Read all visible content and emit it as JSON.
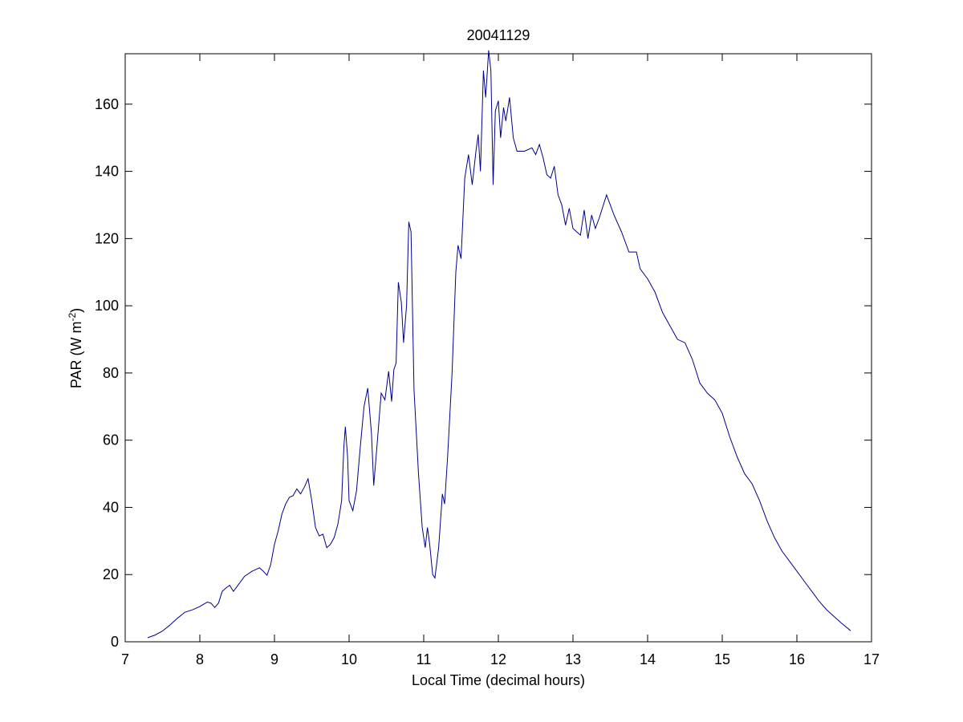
{
  "chart_data": {
    "type": "line",
    "title": "20041129",
    "xlabel": "Local Time (decimal hours)",
    "ylabel": {
      "text": "PAR (W m",
      "superscript": "-2",
      "suffix": ")"
    },
    "color": "#00008b",
    "xlim": [
      7,
      17
    ],
    "xticks": [
      7,
      8,
      9,
      10,
      11,
      12,
      13,
      14,
      15,
      16,
      17
    ],
    "ylim": [
      0,
      175
    ],
    "yticks": [
      0,
      20,
      40,
      60,
      80,
      100,
      120,
      140,
      160
    ],
    "x": [
      7.3,
      7.4,
      7.5,
      7.6,
      7.7,
      7.8,
      7.9,
      8.0,
      8.1,
      8.15,
      8.2,
      8.25,
      8.3,
      8.35,
      8.4,
      8.45,
      8.5,
      8.6,
      8.7,
      8.8,
      8.85,
      8.9,
      8.95,
      9.0,
      9.05,
      9.1,
      9.15,
      9.2,
      9.25,
      9.3,
      9.35,
      9.4,
      9.45,
      9.5,
      9.55,
      9.6,
      9.65,
      9.7,
      9.75,
      9.8,
      9.85,
      9.9,
      9.93,
      9.95,
      9.98,
      10.0,
      10.05,
      10.1,
      10.15,
      10.2,
      10.25,
      10.3,
      10.33,
      10.38,
      10.43,
      10.48,
      10.53,
      10.57,
      10.6,
      10.63,
      10.66,
      10.7,
      10.73,
      10.77,
      10.8,
      10.83,
      10.87,
      10.93,
      10.98,
      11.02,
      11.05,
      11.08,
      11.12,
      11.15,
      11.2,
      11.25,
      11.28,
      11.32,
      11.38,
      11.43,
      11.46,
      11.5,
      11.55,
      11.6,
      11.65,
      11.7,
      11.73,
      11.76,
      11.8,
      11.83,
      11.87,
      11.9,
      11.93,
      11.96,
      12.0,
      12.03,
      12.07,
      12.1,
      12.15,
      12.2,
      12.25,
      12.35,
      12.45,
      12.5,
      12.55,
      12.6,
      12.65,
      12.7,
      12.75,
      12.8,
      12.85,
      12.9,
      12.95,
      13.0,
      13.1,
      13.15,
      13.2,
      13.25,
      13.3,
      13.35,
      13.45,
      13.55,
      13.65,
      13.75,
      13.85,
      13.9,
      14.0,
      14.1,
      14.2,
      14.3,
      14.4,
      14.5,
      14.6,
      14.7,
      14.8,
      14.9,
      15.0,
      15.1,
      15.2,
      15.3,
      15.4,
      15.5,
      15.6,
      15.7,
      15.8,
      15.9,
      16.0,
      16.1,
      16.2,
      16.3,
      16.4,
      16.5,
      16.6,
      16.72
    ],
    "values": [
      1.2,
      2,
      3.2,
      5,
      7,
      8.8,
      9.5,
      10.5,
      11.8,
      11.5,
      10.2,
      11.5,
      15,
      16,
      16.8,
      15,
      16.5,
      19.5,
      21,
      22,
      21,
      19.8,
      23,
      29,
      33,
      38,
      41,
      43,
      43.5,
      45.5,
      44,
      46,
      48.5,
      42,
      34,
      31.5,
      32,
      28,
      29,
      31,
      35,
      42,
      58,
      64,
      55,
      42,
      39,
      45,
      58,
      70,
      75.5,
      62,
      46.5,
      60,
      74,
      72,
      80.5,
      71.5,
      81,
      83,
      107,
      101,
      89,
      100,
      125,
      122,
      75,
      50,
      34,
      28,
      34,
      29,
      20,
      19,
      28,
      44,
      41,
      55,
      80,
      110,
      118,
      114,
      138,
      145,
      136,
      146,
      151,
      140,
      170,
      162,
      176,
      170,
      136,
      158,
      161,
      150,
      159,
      155,
      162,
      150,
      146,
      146,
      147,
      145,
      148,
      144,
      139,
      138,
      141.5,
      133,
      130,
      124,
      129,
      123,
      121,
      128.5,
      120,
      127,
      123,
      126,
      133,
      127,
      122,
      116,
      116,
      111,
      108,
      104,
      98,
      94,
      90,
      89,
      84,
      77,
      74,
      72,
      68,
      61,
      55,
      50,
      47,
      42,
      36,
      31,
      27,
      24,
      21,
      18,
      15,
      12,
      9.5,
      7.5,
      5.5,
      3.3
    ]
  }
}
